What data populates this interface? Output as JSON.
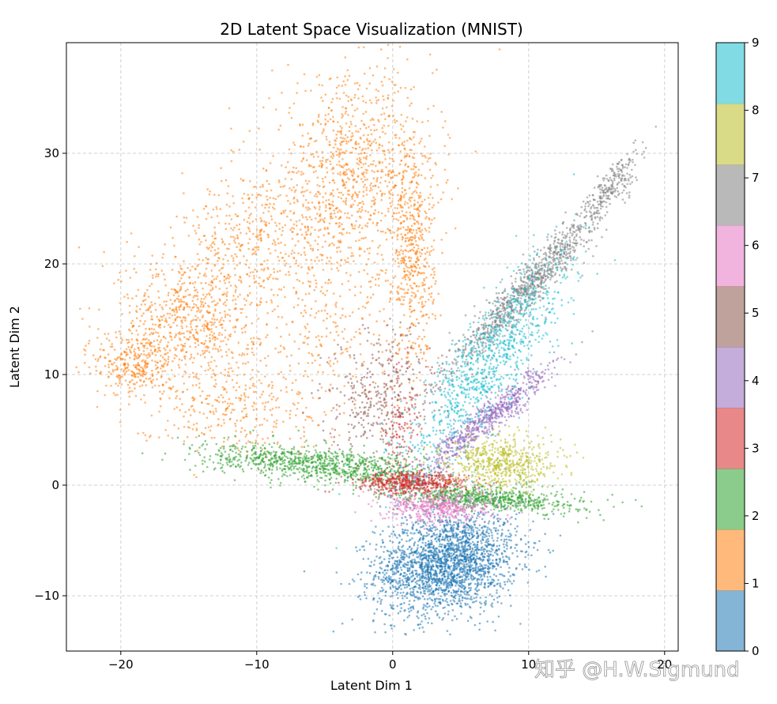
{
  "chart_data": {
    "type": "scatter",
    "title": "2D Latent Space Visualization (MNIST)",
    "xlabel": "Latent Dim 1",
    "ylabel": "Latent Dim 2",
    "xlim": [
      -24,
      21
    ],
    "ylim": [
      -15,
      40
    ],
    "xticks": [
      -20,
      -10,
      0,
      10,
      20
    ],
    "xtick_labels": [
      "−20",
      "−10",
      "0",
      "10",
      "20"
    ],
    "yticks": [
      -10,
      0,
      10,
      20,
      30
    ],
    "ytick_labels": [
      "−10",
      "0",
      "10",
      "20",
      "30"
    ],
    "grid": true,
    "colorbar": {
      "min": 0,
      "max": 9,
      "ticks": [
        "0",
        "1",
        "2",
        "3",
        "4",
        "5",
        "6",
        "7",
        "8",
        "9"
      ],
      "colors": [
        "#1f77b4",
        "#ff7f0e",
        "#2ca02c",
        "#d62728",
        "#9467bd",
        "#8c564b",
        "#e377c2",
        "#7f7f7f",
        "#bcbd22",
        "#17becf"
      ]
    },
    "series": [
      {
        "name": "0",
        "color": "#1f77b4",
        "regions": [
          {
            "cx": 4,
            "cy": -7,
            "sx": 2.6,
            "sy": 2.3,
            "rho": 0.2,
            "n": 2300
          }
        ]
      },
      {
        "name": "1",
        "color": "#ff7f0e",
        "regions": [
          {
            "cx": -3,
            "cy": 28,
            "sx": 3,
            "sy": 4.5,
            "rho": 0.1,
            "n": 1000
          },
          {
            "cx": 1.5,
            "cy": 21,
            "sx": 0.8,
            "sy": 5,
            "rho": 0,
            "n": 500
          },
          {
            "cx": -10,
            "cy": 22,
            "sx": 3,
            "sy": 3,
            "rho": 0,
            "n": 400
          },
          {
            "cx": -15,
            "cy": 15,
            "sx": 2.5,
            "sy": 3,
            "rho": 0,
            "n": 700
          },
          {
            "cx": -19,
            "cy": 11,
            "sx": 1.5,
            "sy": 1.5,
            "rho": 0,
            "n": 300
          },
          {
            "cx": -12,
            "cy": 7,
            "sx": 3.5,
            "sy": 2,
            "rho": 0,
            "n": 300
          },
          {
            "cx": -5,
            "cy": 14,
            "sx": 4,
            "sy": 4,
            "rho": 0,
            "n": 300
          }
        ]
      },
      {
        "name": "2",
        "color": "#2ca02c",
        "regions": [
          {
            "cx": -5,
            "cy": 1.8,
            "sx": 4.5,
            "sy": 0.9,
            "rho": -0.5,
            "n": 1000
          },
          {
            "cx": 7,
            "cy": -1.2,
            "sx": 3.5,
            "sy": 0.6,
            "rho": -0.4,
            "n": 700
          }
        ]
      },
      {
        "name": "3",
        "color": "#d62728",
        "regions": [
          {
            "cx": 1.5,
            "cy": 0.2,
            "sx": 2,
            "sy": 0.5,
            "rho": 0,
            "n": 500
          },
          {
            "cx": 0.5,
            "cy": 5,
            "sx": 0.8,
            "sy": 3,
            "rho": 0,
            "n": 150
          }
        ]
      },
      {
        "name": "4",
        "color": "#9467bd",
        "regions": [
          {
            "cx": 7,
            "cy": 6,
            "sx": 2.5,
            "sy": 2.5,
            "rho": 0.95,
            "n": 700
          }
        ]
      },
      {
        "name": "5",
        "color": "#8c564b",
        "regions": [
          {
            "cx": -1,
            "cy": 8,
            "sx": 2,
            "sy": 3,
            "rho": 0.2,
            "n": 350
          }
        ]
      },
      {
        "name": "6",
        "color": "#e377c2",
        "regions": [
          {
            "cx": 3.5,
            "cy": -2,
            "sx": 2,
            "sy": 0.7,
            "rho": 0,
            "n": 500
          }
        ]
      },
      {
        "name": "7",
        "color": "#7f7f7f",
        "regions": [
          {
            "cx": 10,
            "cy": 18,
            "sx": 3,
            "sy": 4,
            "rho": 0.96,
            "n": 1000
          },
          {
            "cx": 16,
            "cy": 27,
            "sx": 1.2,
            "sy": 1.8,
            "rho": 0.9,
            "n": 200
          }
        ]
      },
      {
        "name": "8",
        "color": "#bcbd22",
        "regions": [
          {
            "cx": 8,
            "cy": 2,
            "sx": 2,
            "sy": 1.2,
            "rho": 0,
            "n": 600
          }
        ]
      },
      {
        "name": "9",
        "color": "#17becf",
        "regions": [
          {
            "cx": 7,
            "cy": 11,
            "sx": 3,
            "sy": 5,
            "rho": 0.85,
            "n": 1000
          }
        ]
      }
    ]
  },
  "watermark": "知乎 @H.W.Sigmund"
}
